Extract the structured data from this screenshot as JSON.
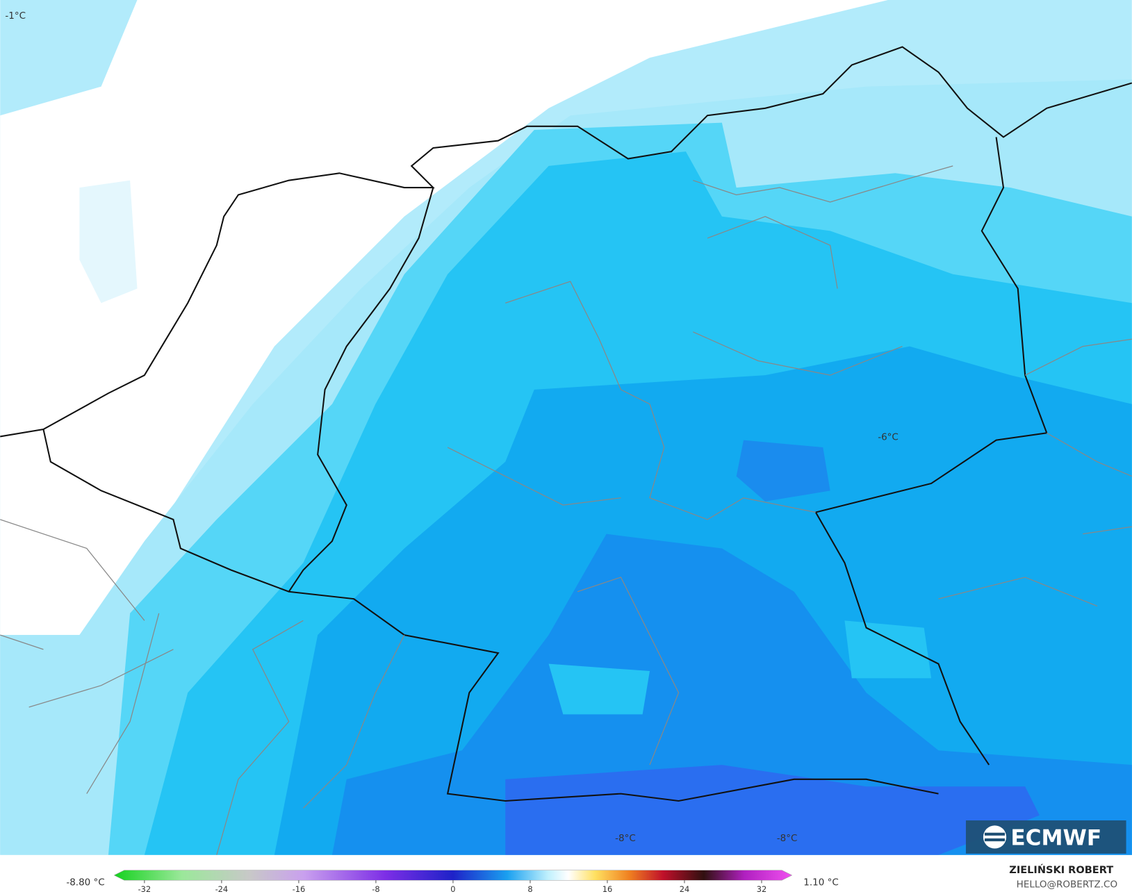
{
  "map": {
    "labels": [
      "-1°C",
      "-6°C",
      "-8°C",
      "-8°C"
    ]
  },
  "colorbar": {
    "ticks": [
      -32,
      -24,
      -16,
      -8,
      0,
      8,
      16,
      24,
      32
    ],
    "min_label": "-8.80 °C",
    "max_label": "1.10 °C"
  },
  "credit": {
    "author": "ZIELIŃSKI ROBERT",
    "email": "HELLO@ROBERTZ.CO"
  },
  "logo": "ECMWF"
}
